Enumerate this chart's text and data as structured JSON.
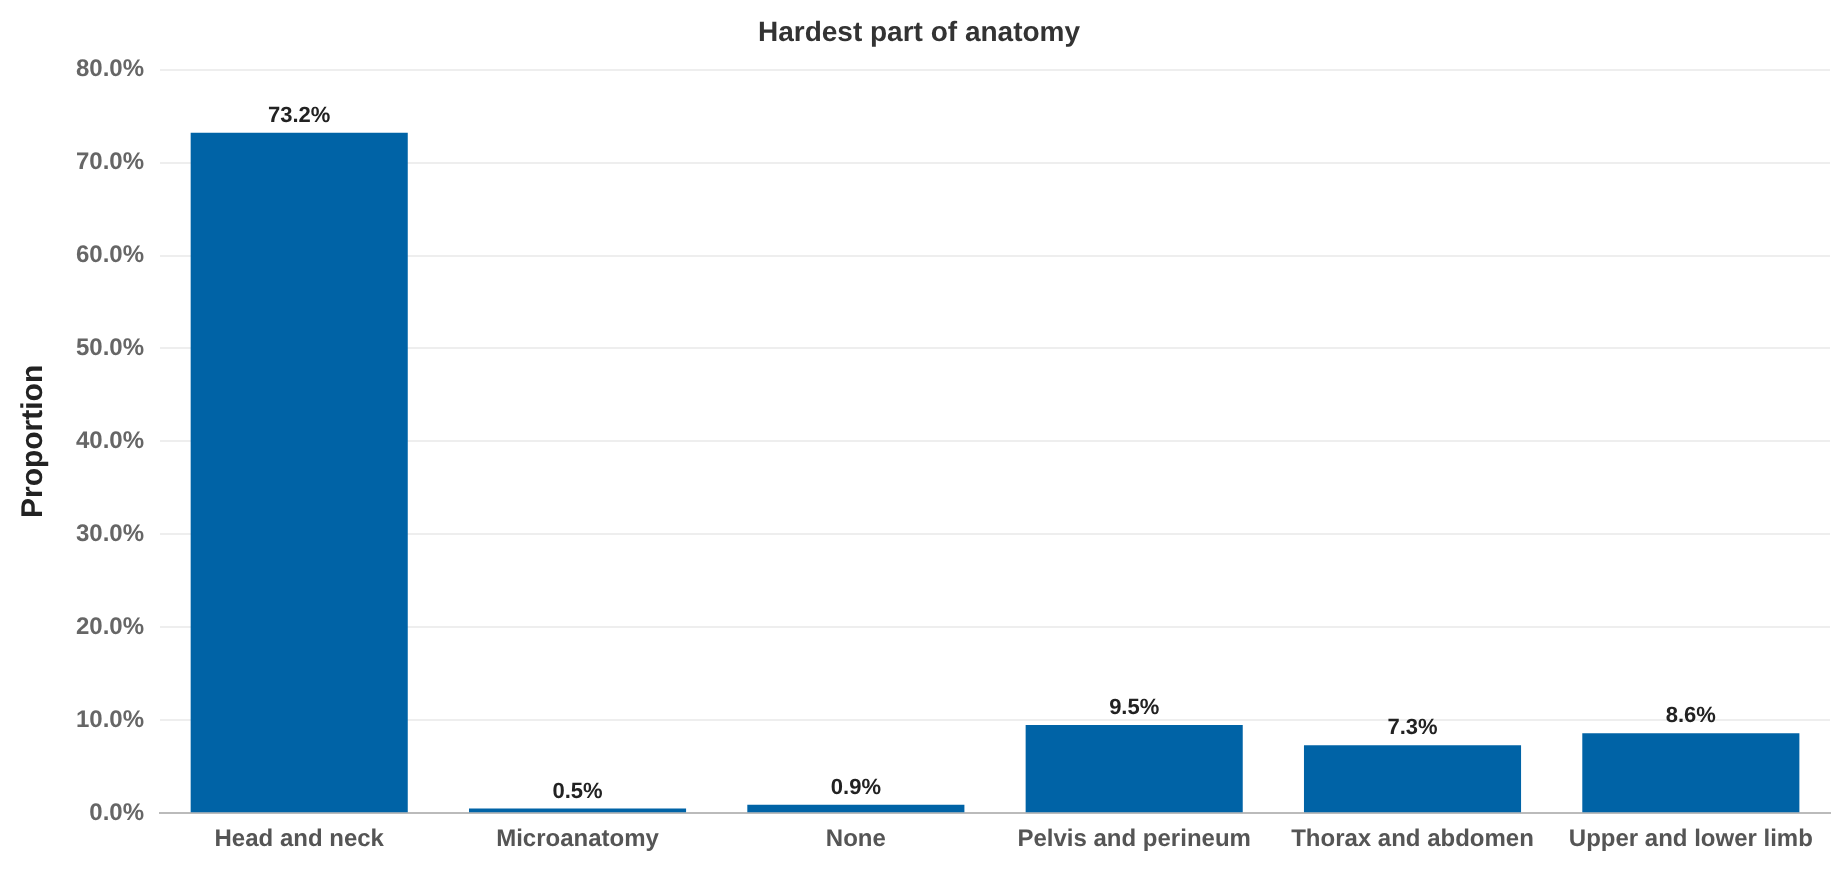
{
  "chart_data": {
    "type": "bar",
    "title": "Hardest part of anatomy",
    "ylabel": "Proportion",
    "categories": [
      "Head and neck",
      "Microanatomy",
      "None",
      "Pelvis and perineum",
      "Thorax and abdomen",
      "Upper and lower limb"
    ],
    "values": [
      73.2,
      0.5,
      0.9,
      9.5,
      7.3,
      8.6
    ],
    "value_labels": [
      "73.2%",
      "0.5%",
      "0.9%",
      "9.5%",
      "7.3%",
      "8.6%"
    ],
    "color": "#0063a6",
    "ylim": [
      0,
      80
    ],
    "yticks": [
      {
        "value": 0,
        "label": "0.0%"
      },
      {
        "value": 10,
        "label": "10.0%"
      },
      {
        "value": 20,
        "label": "20.0%"
      },
      {
        "value": 30,
        "label": "30.0%"
      },
      {
        "value": 40,
        "label": "40.0%"
      },
      {
        "value": 50,
        "label": "50.0%"
      },
      {
        "value": 60,
        "label": "60.0%"
      },
      {
        "value": 70,
        "label": "70.0%"
      },
      {
        "value": 80,
        "label": "80.0%"
      }
    ],
    "grid": "y",
    "legend": false
  }
}
